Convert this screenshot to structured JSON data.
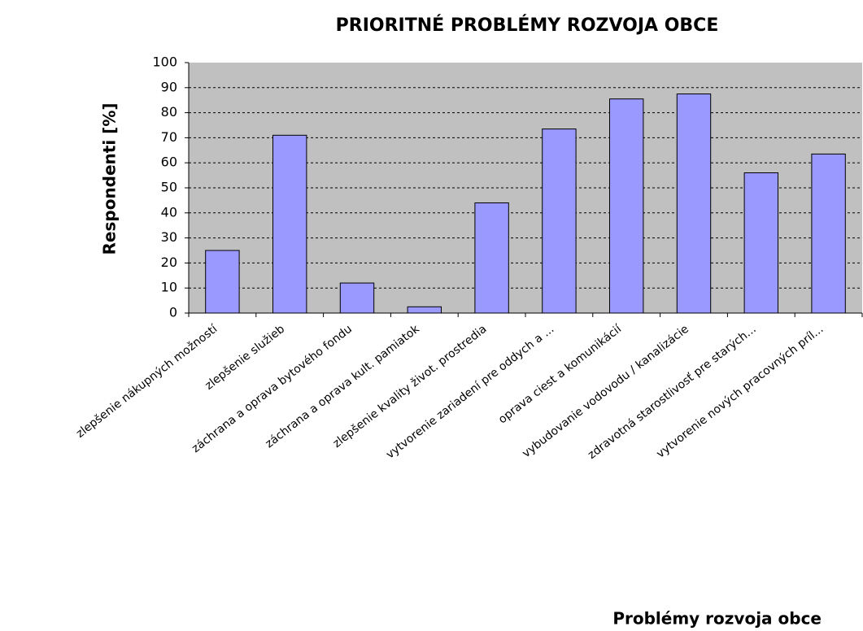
{
  "chart_data": {
    "type": "bar",
    "title": "PRIORITNÉ PROBLÉMY ROZVOJA OBCE",
    "y_label": "Respondenti [%]",
    "x_label": "Problémy rozvoja obce",
    "categories": [
      "zlepšenie nákupných možností",
      "zlepšenie služieb",
      "záchrana a oprava bytového fondu",
      "záchrana a oprava kult. pamiatok",
      "zlepšenie kvality život. prostredia",
      "vytvorenie zariadení pre oddych a ...",
      "oprava ciest a komunikácií",
      "vybudovanie vodovodu / kanalizácie",
      "zdravotná starostlivosť pre starých...",
      "vytvorenie nových pracovných príl..."
    ],
    "values": [
      25,
      71,
      12,
      2.5,
      44,
      73.5,
      85.5,
      87.5,
      56,
      63.5
    ],
    "color": "#9999ff",
    "ylim": [
      0,
      100
    ],
    "yticks": [
      0,
      10,
      20,
      30,
      40,
      50,
      60,
      70,
      80,
      90,
      100
    ],
    "grid": true
  }
}
